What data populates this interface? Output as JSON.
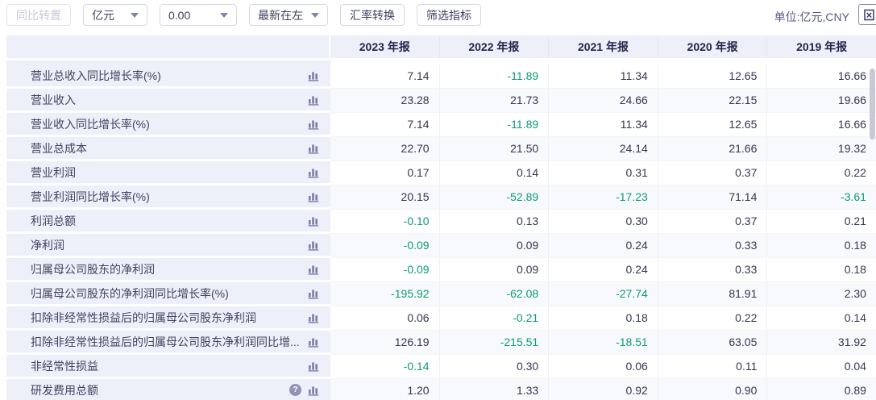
{
  "toolbar": {
    "transpose_label": "同比转置",
    "unit_select_value": "亿元",
    "decimal_select_value": "0.00",
    "order_select_value": "最新在左",
    "fx_button_label": "汇率转换",
    "filter_button_label": "筛选指标",
    "unit_note": "单位:亿元,CNY",
    "export_icon": "excel-export-icon"
  },
  "colors": {
    "negative_value": "#0c9c73",
    "header_bg": "#eef0f9",
    "label_cell_bg": "#eef0f9",
    "stripe_bg": "#f8f9fd"
  },
  "icons": {
    "row_chart_icon": "bar-chart-icon",
    "help_icon": "question-mark-icon",
    "dropdown_icon": "chevron-down-icon"
  },
  "table": {
    "columns": [
      "2023 年报",
      "2022 年报",
      "2021 年报",
      "2020 年报",
      "2019 年报"
    ],
    "rows": [
      {
        "label": "营业总收入同比增长率(%)",
        "values": [
          "7.14",
          "-11.89",
          "11.34",
          "12.65",
          "16.66"
        ]
      },
      {
        "label": "营业收入",
        "values": [
          "23.28",
          "21.73",
          "24.66",
          "22.15",
          "19.66"
        ]
      },
      {
        "label": "营业收入同比增长率(%)",
        "values": [
          "7.14",
          "-11.89",
          "11.34",
          "12.65",
          "16.66"
        ]
      },
      {
        "label": "营业总成本",
        "values": [
          "22.70",
          "21.50",
          "24.14",
          "21.66",
          "19.32"
        ]
      },
      {
        "label": "营业利润",
        "values": [
          "0.17",
          "0.14",
          "0.31",
          "0.37",
          "0.22"
        ]
      },
      {
        "label": "营业利润同比增长率(%)",
        "values": [
          "20.15",
          "-52.89",
          "-17.23",
          "71.14",
          "-3.61"
        ]
      },
      {
        "label": "利润总额",
        "values": [
          "-0.10",
          "0.13",
          "0.30",
          "0.37",
          "0.21"
        ]
      },
      {
        "label": "净利润",
        "values": [
          "-0.09",
          "0.09",
          "0.24",
          "0.33",
          "0.18"
        ]
      },
      {
        "label": "归属母公司股东的净利润",
        "values": [
          "-0.09",
          "0.09",
          "0.24",
          "0.33",
          "0.18"
        ]
      },
      {
        "label": "归属母公司股东的净利润同比增长率(%)",
        "values": [
          "-195.92",
          "-62.08",
          "-27.74",
          "81.91",
          "2.30"
        ]
      },
      {
        "label": "扣除非经常性损益后的归属母公司股东净利润",
        "values": [
          "0.06",
          "-0.21",
          "0.18",
          "0.22",
          "0.14"
        ]
      },
      {
        "label": "扣除非经常性损益后的归属母公司股东净利润同比增...",
        "values": [
          "126.19",
          "-215.51",
          "-18.51",
          "63.05",
          "31.92"
        ]
      },
      {
        "label": "非经常性损益",
        "values": [
          "-0.14",
          "0.30",
          "0.06",
          "0.11",
          "0.04"
        ]
      },
      {
        "label": "研发费用总额",
        "values": [
          "1.20",
          "1.33",
          "0.92",
          "0.90",
          "0.89"
        ],
        "help": true
      }
    ]
  }
}
